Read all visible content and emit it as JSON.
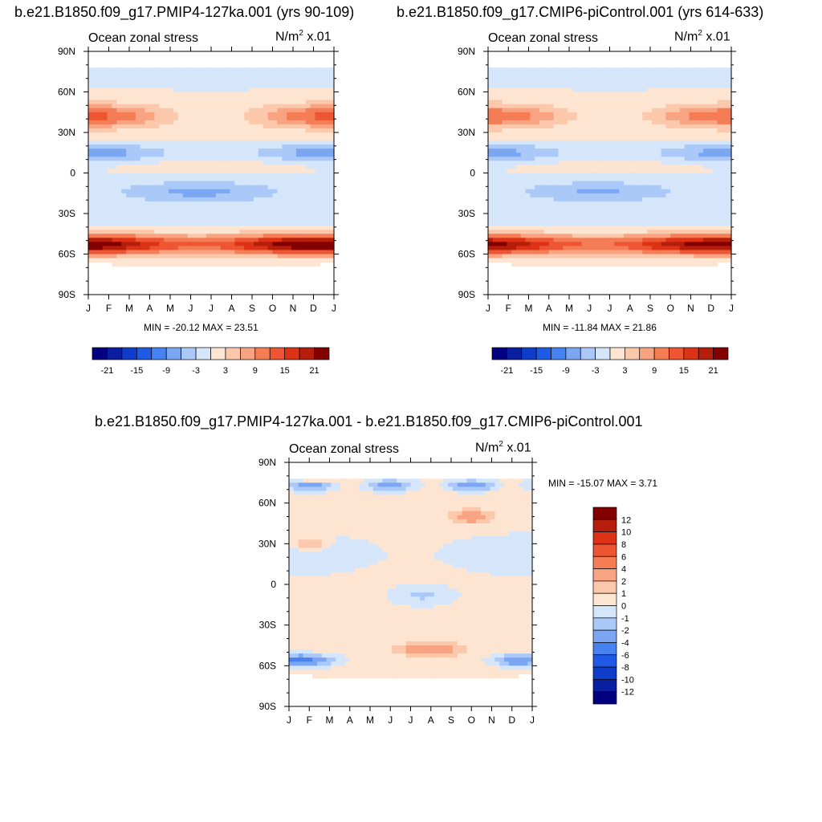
{
  "titles": {
    "left_run": "b.e21.B1850.f09_g17.PMIP4-127ka.001 (yrs 90-109)",
    "right_run": "b.e21.B1850.f09_g17.CMIP6-piControl.001 (yrs 614-633)",
    "diff": "b.e21.B1850.f09_g17.PMIP4-127ka.001 - b.e21.B1850.f09_g17.CMIP6-piControl.001"
  },
  "chart_data": [
    {
      "type": "heatmap",
      "id": "panel-127ka",
      "title": "Ocean zonal stress",
      "units": "N/m",
      "units_sup": "2",
      "units_scale": "x.01",
      "x_tick_labels": [
        "J",
        "F",
        "M",
        "A",
        "M",
        "J",
        "J",
        "A",
        "S",
        "O",
        "N",
        "D",
        "J"
      ],
      "y_tick_labels": [
        "90N",
        "60N",
        "30N",
        "0",
        "30S",
        "60S",
        "90S"
      ],
      "ylim": [
        -90,
        90
      ],
      "min_label": "MIN = -20.12",
      "max_label": "MAX =  23.51",
      "colorbar": {
        "orientation": "horizontal",
        "labels": [
          "-21",
          "-15",
          "-9",
          "-3",
          "3",
          "9",
          "15",
          "21"
        ]
      }
    },
    {
      "type": "heatmap",
      "id": "panel-piControl",
      "title": "Ocean zonal stress",
      "units": "N/m",
      "units_sup": "2",
      "units_scale": "x.01",
      "x_tick_labels": [
        "J",
        "F",
        "M",
        "A",
        "M",
        "J",
        "J",
        "A",
        "S",
        "O",
        "N",
        "D",
        "J"
      ],
      "y_tick_labels": [
        "90N",
        "60N",
        "30N",
        "0",
        "30S",
        "60S",
        "90S"
      ],
      "ylim": [
        -90,
        90
      ],
      "min_label": "MIN = -11.84",
      "max_label": "MAX =  21.86",
      "colorbar": {
        "orientation": "horizontal",
        "labels": [
          "-21",
          "-15",
          "-9",
          "-3",
          "3",
          "9",
          "15",
          "21"
        ]
      }
    },
    {
      "type": "heatmap",
      "id": "panel-diff",
      "title": "Ocean zonal stress",
      "units": "N/m",
      "units_sup": "2",
      "units_scale": "x.01",
      "x_tick_labels": [
        "J",
        "F",
        "M",
        "A",
        "M",
        "J",
        "J",
        "A",
        "S",
        "O",
        "N",
        "D",
        "J"
      ],
      "y_tick_labels": [
        "90N",
        "60N",
        "30N",
        "0",
        "30S",
        "60S",
        "90S"
      ],
      "ylim": [
        -90,
        90
      ],
      "min_label": "MIN = -15.07",
      "max_label": "MAX =   3.71",
      "colorbar": {
        "orientation": "vertical",
        "labels": [
          "12",
          "10",
          "8",
          "6",
          "4",
          "2",
          "1",
          "0",
          "-1",
          "-2",
          "-4",
          "-6",
          "-8",
          "-10",
          "-12"
        ]
      }
    }
  ],
  "colors": {
    "absolute_scale": [
      "#000080",
      "#0a1ea0",
      "#0f3cc8",
      "#1e5ae6",
      "#4682f0",
      "#7aa6f2",
      "#aac8f8",
      "#d6e6fa",
      "#fde5d2",
      "#fcc8ac",
      "#f8a482",
      "#f47d56",
      "#ee5532",
      "#dc3216",
      "#b41e0a",
      "#820000"
    ],
    "diff_scale": [
      "#820000",
      "#b41e0a",
      "#dc3216",
      "#ee5532",
      "#f47d56",
      "#f8a482",
      "#fcc8ac",
      "#fde5d2",
      "#d6e6fa",
      "#aac8f8",
      "#7aa6f2",
      "#4682f0",
      "#1e5ae6",
      "#0f3cc8",
      "#0a1ea0",
      "#000080"
    ]
  }
}
